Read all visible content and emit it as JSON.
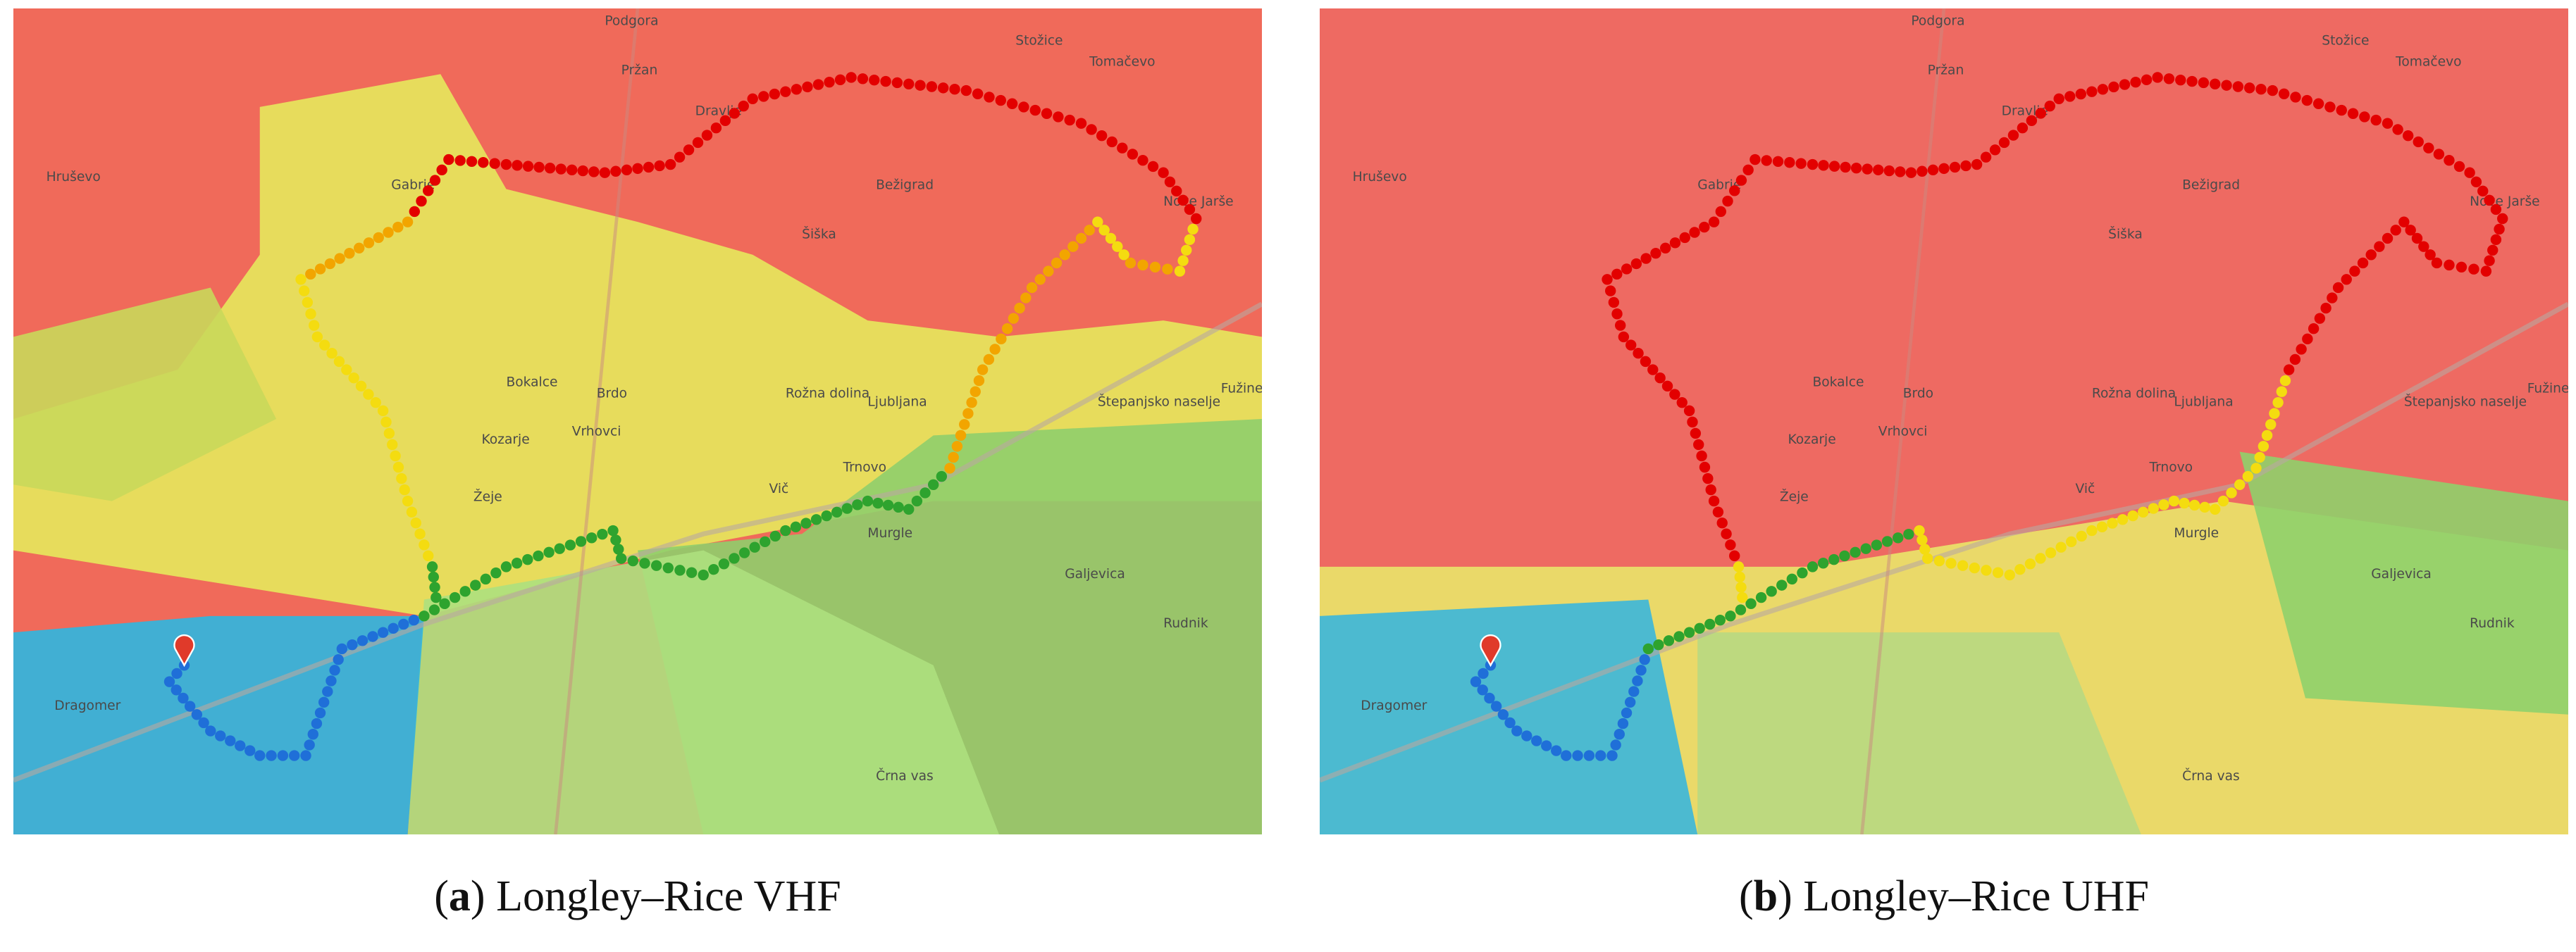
{
  "panels": [
    {
      "caption_parts": [
        "(",
        "a",
        ") Longley–Rice VHF"
      ],
      "places": [
        "Podgora",
        "Pržan",
        "Dravlje",
        "Tomačevo",
        "Stožice",
        "Bežigrad",
        "Nove Jarše",
        "Šiška",
        "Gabrje",
        "Hruševo",
        "Bokalce",
        "Brdo",
        "Rožna dolina",
        "Ljubljana",
        "Kozarje",
        "Vrhovci",
        "Vič",
        "Trnovo",
        "Murgle",
        "Štepanjsko naselje",
        "Fužine",
        "Galjevica",
        "Rudnik",
        "Črna vas",
        "Dragomer",
        "Žeje"
      ]
    },
    {
      "caption_parts": [
        "(",
        "b",
        ") Longley–Rice UHF"
      ],
      "places": [
        "Podgora",
        "Pržan",
        "Dravlje",
        "Tomačevo",
        "Stožice",
        "Bežigrad",
        "Nove Jarše",
        "Šiška",
        "Gabrje",
        "Hruševo",
        "Bokalce",
        "Brdo",
        "Rožna dolina",
        "Ljubljana",
        "Kozarje",
        "Vrhovci",
        "Vič",
        "Trnovo",
        "Murgle",
        "Štepanjsko naselje",
        "Fužine",
        "Galjevica",
        "Rudnik",
        "Črna vas",
        "Dragomer",
        "Žeje"
      ]
    }
  ]
}
